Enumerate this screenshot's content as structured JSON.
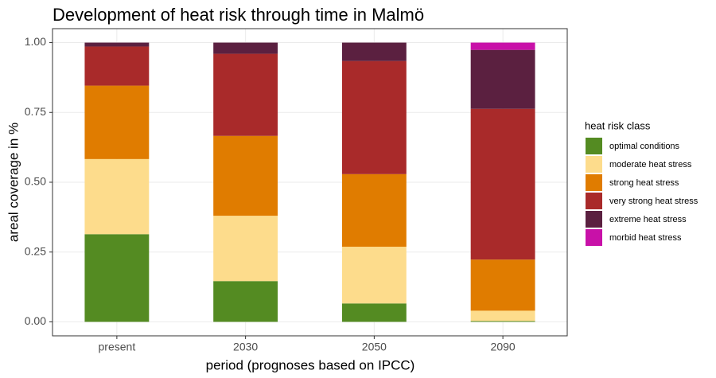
{
  "chart_data": {
    "type": "stacked_bar",
    "title": "Development of heat risk through time in Malmö",
    "x_label": "period (prognoses based on IPCC)",
    "y_label": "areal coverage in %",
    "legend_title": "heat risk class",
    "categories": [
      "present",
      "2030",
      "2050",
      "2090"
    ],
    "series": [
      {
        "name": "optimal conditions",
        "color": "#548b22",
        "values": [
          0.314,
          0.146,
          0.066,
          0.003
        ]
      },
      {
        "name": "moderate heat stress",
        "color": "#fddc8c",
        "values": [
          0.269,
          0.234,
          0.203,
          0.037
        ]
      },
      {
        "name": "strong heat stress",
        "color": "#e07c00",
        "values": [
          0.263,
          0.286,
          0.26,
          0.183
        ]
      },
      {
        "name": "very strong heat stress",
        "color": "#a92a2a",
        "values": [
          0.14,
          0.294,
          0.405,
          0.54
        ]
      },
      {
        "name": "extreme heat stress",
        "color": "#5b2040",
        "values": [
          0.014,
          0.04,
          0.066,
          0.211
        ]
      },
      {
        "name": "morbid heat stress",
        "color": "#c811a8",
        "values": [
          0,
          0,
          0,
          0.026
        ]
      }
    ],
    "ylim": [
      -0.05,
      1.05
    ],
    "yticks": [
      {
        "value": 0,
        "label": "0.00"
      },
      {
        "value": 0.25,
        "label": "0.25"
      },
      {
        "value": 0.5,
        "label": "0.50"
      },
      {
        "value": 0.75,
        "label": "0.75"
      },
      {
        "value": 1,
        "label": "1.00"
      }
    ],
    "grid": true
  }
}
